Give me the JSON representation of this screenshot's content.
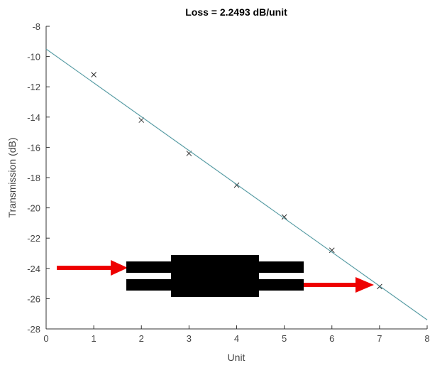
{
  "chart_data": {
    "type": "scatter",
    "title": "Loss = 2.2493 dB/unit",
    "x_label": "Unit",
    "y_label": "Transmission (dB)",
    "xlim": [
      0,
      8
    ],
    "ylim": [
      -28,
      -8
    ],
    "xticks": [
      0,
      1,
      2,
      3,
      4,
      5,
      6,
      7,
      8
    ],
    "yticks": [
      -28,
      -26,
      -24,
      -22,
      -20,
      -18,
      -16,
      -14,
      -12,
      -10,
      -8
    ],
    "series": [
      {
        "color": "#333333",
        "marker": "x",
        "x": [
          1,
          2,
          3,
          4,
          5,
          6,
          7
        ],
        "values": [
          -11.2,
          -14.2,
          -16.4,
          -18.5,
          -20.6,
          -22.8,
          -25.2
        ]
      },
      {
        "color": "#5b9ea6",
        "marker": "line",
        "x": [
          0,
          8
        ],
        "values": [
          -9.5,
          -27.4
        ]
      }
    ]
  }
}
